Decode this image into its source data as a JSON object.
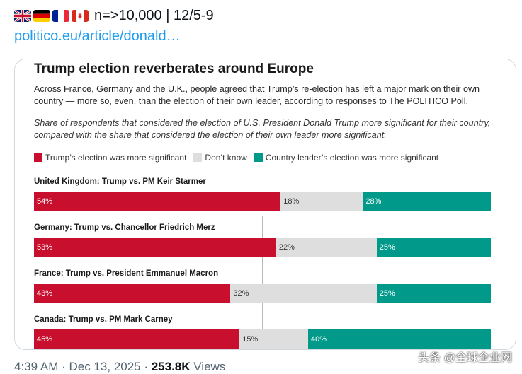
{
  "post": {
    "flags": [
      {
        "icon": "uk-flag-icon"
      },
      {
        "icon": "germany-flag-icon"
      },
      {
        "icon": "france-flag-icon"
      },
      {
        "icon": "canada-flag-icon"
      }
    ],
    "header_text": "n=>10,000 | 12/5-9",
    "link_text": "politico.eu/article/donald…",
    "meta": {
      "time": "4:39 AM · Dec 13, 2025 · ",
      "views_count": "253.8K",
      "views_label": " Views"
    },
    "watermark": "头条 @全球企业网"
  },
  "graphic": {
    "title": "Trump election reverberates around Europe",
    "body": "Across France, Germany and the U.K., people agreed that Trump’s re-election has left a major mark on their own country — more so, even, than the election of their own leader, according to responses to The POLITICO Poll.",
    "note": "Share of respondents that considered the election of U.S. President Donald Trump more significant for their country, compared with the share that considered the election of their own leader more significant.",
    "colors": {
      "trump": "#c8102e",
      "dont_know": "#dedede",
      "leader": "#00998a"
    }
  },
  "chart_data": {
    "type": "bar",
    "stacked": true,
    "orientation": "horizontal",
    "categories": [
      "United Kingdom: Trump vs. PM Keir Starmer",
      "Germany: Trump vs. Chancellor Friedrich Merz",
      "France: Trump vs. President Emmanuel Macron",
      "Canada: Trump vs. PM Mark Carney"
    ],
    "series": [
      {
        "name": "Trump’s election was more significant",
        "values": [
          54,
          53,
          43,
          45
        ],
        "labels": [
          "54%",
          "53%",
          "43%",
          "45%"
        ]
      },
      {
        "name": "Don’t know",
        "values": [
          18,
          22,
          32,
          15
        ],
        "labels": [
          "18%",
          "22%",
          "32%",
          "15%"
        ]
      },
      {
        "name": "Country leader’s election was more significant",
        "values": [
          28,
          25,
          25,
          40
        ],
        "labels": [
          "28%",
          "25%",
          "25%",
          "40%"
        ]
      }
    ]
  }
}
